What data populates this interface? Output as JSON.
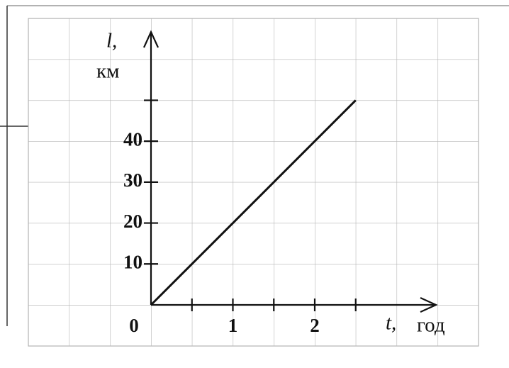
{
  "chart_data": {
    "type": "line",
    "ylabel": "l,",
    "yunit": "км",
    "xlabel": "t,",
    "xunit": "год",
    "x": [
      0,
      2.5
    ],
    "values": [
      0,
      50
    ],
    "color": "#111111",
    "xlim": [
      0,
      3.5
    ],
    "ylim": [
      0,
      70
    ],
    "xticks": [
      0,
      1,
      2
    ],
    "xminor_ticks": [
      0.5,
      1.5,
      2.5
    ],
    "yticks": [
      10,
      20,
      30,
      40
    ],
    "yminor_ticks": [
      50
    ],
    "grid": true
  }
}
